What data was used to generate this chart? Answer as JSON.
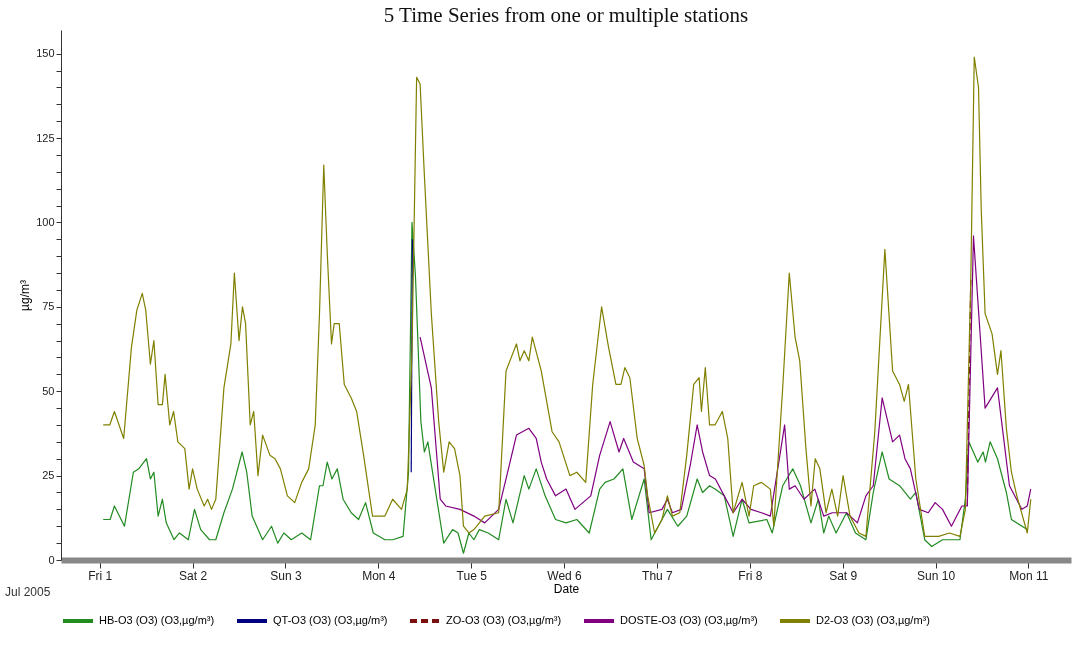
{
  "chart_data": {
    "type": "line",
    "title": "5 Time Series from  one or multiple stations",
    "xlabel": "Date",
    "ylabel": "µg/m³",
    "annotations": [
      "Jul 2005"
    ],
    "xlim": [
      "2005-06-30T14:00",
      "2005-07-11T11:00"
    ],
    "xticks": [
      {
        "value": "2005-07-01T00:00",
        "label": "Fri 1"
      },
      {
        "value": "2005-07-02T00:00",
        "label": "Sat 2"
      },
      {
        "value": "2005-07-03T00:00",
        "label": "Sun 3"
      },
      {
        "value": "2005-07-04T00:00",
        "label": "Mon 4"
      },
      {
        "value": "2005-07-05T00:00",
        "label": "Tue 5"
      },
      {
        "value": "2005-07-06T00:00",
        "label": "Wed 6"
      },
      {
        "value": "2005-07-07T00:00",
        "label": "Thu 7"
      },
      {
        "value": "2005-07-08T00:00",
        "label": "Fri 8"
      },
      {
        "value": "2005-07-09T00:00",
        "label": "Sat 9"
      },
      {
        "value": "2005-07-10T00:00",
        "label": "Sun 10"
      },
      {
        "value": "2005-07-11T00:00",
        "label": "Mon 11"
      }
    ],
    "ylim": [
      0,
      157
    ],
    "yticks": [
      0,
      {
        "value": 5,
        "label": null
      },
      {
        "value": 10,
        "label": null
      },
      {
        "value": 15,
        "label": null
      },
      {
        "value": 20,
        "label": null
      },
      25,
      {
        "value": 30,
        "label": null
      },
      {
        "value": 35,
        "label": null
      },
      {
        "value": 40,
        "label": null
      },
      {
        "value": 45,
        "label": null
      },
      50,
      {
        "value": 55,
        "label": null
      },
      {
        "value": 60,
        "label": null
      },
      {
        "value": 65,
        "label": null
      },
      {
        "value": 70,
        "label": null
      },
      75,
      {
        "value": 80,
        "label": null
      },
      {
        "value": 85,
        "label": null
      },
      {
        "value": 90,
        "label": null
      },
      {
        "value": 95,
        "label": null
      },
      100,
      {
        "value": 105,
        "label": null
      },
      {
        "value": 110,
        "label": null
      },
      {
        "value": 115,
        "label": null
      },
      {
        "value": 120,
        "label": null
      },
      125,
      {
        "value": 130,
        "label": null
      },
      {
        "value": 135,
        "label": null
      },
      {
        "value": 140,
        "label": null
      },
      {
        "value": 145,
        "label": null
      },
      150
    ],
    "grid": false,
    "legend": "bottom",
    "marker": "none",
    "series": [
      {
        "name": "HB-O3 (O3) (O3,µg/m³)",
        "color": "#228b22",
        "line_style": "solid",
        "x": [
          "2005-07-01T00:54",
          "2005-07-01T02:42",
          "2005-07-01T03:48",
          "2005-07-01T06:24",
          "2005-07-01T08:42",
          "2005-07-01T10:06",
          "2005-07-01T12:06",
          "2005-07-01T13:06",
          "2005-07-01T14:00",
          "2005-07-01T15:06",
          "2005-07-01T16:12",
          "2005-07-01T17:12",
          "2005-07-01T19:12",
          "2005-07-01T20:36",
          "2005-07-01T22:54",
          "2005-07-02T00:30",
          "2005-07-02T02:06",
          "2005-07-02T04:24",
          "2005-07-02T06:00",
          "2005-07-02T08:06",
          "2005-07-02T10:18",
          "2005-07-02T12:48",
          "2005-07-02T14:00",
          "2005-07-02T15:24",
          "2005-07-02T18:06",
          "2005-07-02T20:24",
          "2005-07-02T22:00",
          "2005-07-02T23:36",
          "2005-07-03T01:30",
          "2005-07-03T04:12",
          "2005-07-03T06:30",
          "2005-07-03T08:48",
          "2005-07-03T09:42",
          "2005-07-03T10:48",
          "2005-07-03T12:00",
          "2005-07-03T13:24",
          "2005-07-03T14:54",
          "2005-07-03T17:00",
          "2005-07-03T18:54",
          "2005-07-03T20:42",
          "2005-07-03T22:42",
          "2005-07-04T01:42",
          "2005-07-04T03:42",
          "2005-07-04T06:24",
          "2005-07-04T07:48",
          "2005-07-04T08:42",
          "2005-07-04T09:36",
          "2005-07-04T11:00",
          "2005-07-04T11:54",
          "2005-07-04T12:48",
          "2005-07-04T14:42",
          "2005-07-04T16:54",
          "2005-07-04T19:12",
          "2005-07-04T20:36",
          "2005-07-04T22:00",
          "2005-07-04T23:24",
          "2005-07-05T00:42",
          "2005-07-05T02:06",
          "2005-07-05T04:24",
          "2005-07-05T07:06",
          "2005-07-05T09:00",
          "2005-07-05T10:48",
          "2005-07-05T13:42",
          "2005-07-05T14:54",
          "2005-07-05T16:48",
          "2005-07-05T19:06",
          "2005-07-05T21:48",
          "2005-07-06T00:30",
          "2005-07-06T03:18",
          "2005-07-06T06:30",
          "2005-07-06T09:12",
          "2005-07-06T10:36",
          "2005-07-06T12:54",
          "2005-07-06T15:12",
          "2005-07-06T17:30",
          "2005-07-06T20:42",
          "2005-07-06T22:30",
          "2005-07-07T01:18",
          "2005-07-07T02:42",
          "2005-07-07T05:24",
          "2005-07-07T07:42",
          "2005-07-07T10:24",
          "2005-07-07T11:48",
          "2005-07-07T13:36",
          "2005-07-07T15:00",
          "2005-07-07T17:24",
          "2005-07-07T19:42",
          "2005-07-07T22:00",
          "2005-07-07T23:48",
          "2005-07-08T04:24",
          "2005-07-08T05:48",
          "2005-07-08T08:30",
          "2005-07-08T11:06",
          "2005-07-08T13:06",
          "2005-07-08T15:48",
          "2005-07-08T17:42",
          "2005-07-08T19:06",
          "2005-07-08T20:24",
          "2005-07-08T22:18",
          "2005-07-09T01:00",
          "2005-07-09T03:18",
          "2005-07-09T06:00",
          "2005-07-09T07:54",
          "2005-07-09T10:12",
          "2005-07-09T12:00",
          "2005-07-09T14:42",
          "2005-07-09T17:30",
          "2005-07-09T18:54",
          "2005-07-09T21:12",
          "2005-07-09T23:00",
          "2005-07-10T01:48",
          "2005-07-10T06:18",
          "2005-07-10T07:42",
          "2005-07-10T08:36",
          "2005-07-10T10:54",
          "2005-07-10T12:18",
          "2005-07-10T12:54",
          "2005-07-10T14:06",
          "2005-07-10T16:00",
          "2005-07-10T18:18",
          "2005-07-10T19:36",
          "2005-07-10T23:42"
        ],
        "values": [
          12,
          12,
          16,
          10,
          26,
          27,
          30,
          24,
          26,
          13,
          18,
          11,
          6,
          8,
          6,
          15,
          9,
          6,
          6,
          14,
          21,
          32,
          26,
          13,
          6,
          10,
          5,
          8,
          6,
          8,
          6,
          22,
          22,
          29,
          24,
          27,
          18,
          14,
          12,
          17,
          8,
          6,
          6,
          7,
          26,
          100,
          84,
          41,
          32,
          35,
          21,
          5,
          9,
          8,
          2,
          8,
          6,
          9,
          8,
          6,
          18,
          11,
          25,
          21,
          27,
          19,
          12,
          11,
          12,
          8,
          21,
          23,
          24,
          27,
          12,
          24,
          6,
          12,
          15,
          10,
          13,
          24,
          20,
          22,
          21,
          19,
          7,
          18,
          11,
          12,
          8,
          22,
          27,
          22,
          11,
          18,
          8,
          13,
          8,
          14,
          8,
          6,
          20,
          32,
          24,
          22,
          18,
          20,
          6,
          4,
          6,
          6,
          18,
          35,
          29,
          32,
          29,
          35,
          30,
          20,
          12,
          9
        ]
      },
      {
        "name": "QT-O3 (O3) (O3,µg/m³)",
        "color": "#000080",
        "line_style": "solid",
        "x": [
          "2005-07-04T08:30",
          "2005-07-04T08:48"
        ],
        "values": [
          26,
          95
        ]
      },
      {
        "name": "ZO-O3 (O3) (O3,µg/m³)",
        "color": "#7b1010",
        "line_style": "dashed",
        "x": [
          "2005-07-10T08:12",
          "2005-07-10T09:06"
        ],
        "values": [
          16,
          83
        ]
      },
      {
        "name": "DOSTE-O3 (O3) (O3,µg/m³)",
        "color": "#800080",
        "line_style": "solid",
        "x": [
          "2005-07-04T10:48",
          "2005-07-04T13:42",
          "2005-07-04T16:00",
          "2005-07-04T17:24",
          "2005-07-04T21:06",
          "2005-07-05T00:42",
          "2005-07-05T03:30",
          "2005-07-05T07:06",
          "2005-07-05T09:00",
          "2005-07-05T11:42",
          "2005-07-05T14:54",
          "2005-07-05T16:48",
          "2005-07-05T18:06",
          "2005-07-05T19:30",
          "2005-07-05T21:48",
          "2005-07-06T00:30",
          "2005-07-06T02:48",
          "2005-07-06T06:54",
          "2005-07-06T09:12",
          "2005-07-06T11:54",
          "2005-07-06T14:12",
          "2005-07-06T15:24",
          "2005-07-06T17:54",
          "2005-07-06T20:42",
          "2005-07-06T22:00",
          "2005-07-07T01:18",
          "2005-07-07T02:42",
          "2005-07-07T04:00",
          "2005-07-07T06:18",
          "2005-07-07T08:36",
          "2005-07-07T10:24",
          "2005-07-07T11:48",
          "2005-07-07T13:36",
          "2005-07-07T15:06",
          "2005-07-07T17:24",
          "2005-07-07T19:42",
          "2005-07-07T22:00",
          "2005-07-08T00:18",
          "2005-07-08T03:00",
          "2005-07-08T05:18",
          "2005-07-08T09:00",
          "2005-07-08T10:12",
          "2005-07-08T11:42",
          "2005-07-08T14:00",
          "2005-07-08T16:48",
          "2005-07-08T19:06",
          "2005-07-08T21:18",
          "2005-07-09T01:00",
          "2005-07-09T03:48",
          "2005-07-09T06:00",
          "2005-07-09T07:54",
          "2005-07-09T10:12",
          "2005-07-09T12:54",
          "2005-07-09T14:42",
          "2005-07-09T16:06",
          "2005-07-09T17:30",
          "2005-07-09T19:48",
          "2005-07-09T22:06",
          "2005-07-09T23:54",
          "2005-07-10T01:48",
          "2005-07-10T04:06",
          "2005-07-10T06:48",
          "2005-07-10T08:12",
          "2005-07-10T09:48",
          "2005-07-10T11:48",
          "2005-07-10T12:48",
          "2005-07-10T16:00",
          "2005-07-10T19:06",
          "2005-07-10T22:18",
          "2005-07-10T23:42",
          "2005-07-11T00:36"
        ],
        "values": [
          66,
          51,
          18,
          16,
          15,
          13,
          11,
          15,
          24,
          37,
          39,
          36,
          29,
          24,
          19,
          21,
          15,
          19,
          31,
          41,
          32,
          36,
          29,
          27,
          14,
          15,
          18,
          14,
          15,
          28,
          40,
          32,
          25,
          24,
          19,
          14,
          18,
          15,
          14,
          13,
          40,
          21,
          22,
          18,
          21,
          13,
          14,
          14,
          11,
          19,
          22,
          48,
          35,
          37,
          30,
          27,
          15,
          14,
          17,
          15,
          10,
          16,
          16,
          96,
          62,
          45,
          51,
          22,
          15,
          16,
          21
        ]
      },
      {
        "name": "D2-O3 (O3) (O3,µg/m³)",
        "color": "#808000",
        "line_style": "solid",
        "x": [
          "2005-07-01T00:54",
          "2005-07-01T02:36",
          "2005-07-01T03:48",
          "2005-07-01T06:12",
          "2005-07-01T08:12",
          "2005-07-01T09:36",
          "2005-07-01T11:00",
          "2005-07-01T11:54",
          "2005-07-01T13:06",
          "2005-07-01T14:00",
          "2005-07-01T15:06",
          "2005-07-01T16:12",
          "2005-07-01T16:54",
          "2005-07-01T18:06",
          "2005-07-01T19:06",
          "2005-07-01T20:12",
          "2005-07-01T22:00",
          "2005-07-01T23:06",
          "2005-07-02T00:00",
          "2005-07-02T01:12",
          "2005-07-02T03:00",
          "2005-07-02T03:54",
          "2005-07-02T04:54",
          "2005-07-02T06:00",
          "2005-07-02T08:06",
          "2005-07-02T09:54",
          "2005-07-02T10:48",
          "2005-07-02T12:00",
          "2005-07-02T12:54",
          "2005-07-02T13:42",
          "2005-07-02T14:54",
          "2005-07-02T15:48",
          "2005-07-02T16:54",
          "2005-07-02T18:06",
          "2005-07-02T20:00",
          "2005-07-02T21:18",
          "2005-07-02T22:42",
          "2005-07-03T00:30",
          "2005-07-03T02:24",
          "2005-07-03T04:12",
          "2005-07-03T06:00",
          "2005-07-03T07:42",
          "2005-07-03T08:48",
          "2005-07-03T09:54",
          "2005-07-03T10:48",
          "2005-07-03T11:54",
          "2005-07-03T12:36",
          "2005-07-03T13:54",
          "2005-07-03T15:12",
          "2005-07-03T17:00",
          "2005-07-03T18:24",
          "2005-07-03T20:12",
          "2005-07-03T22:30",
          "2005-07-04T01:42",
          "2005-07-04T03:42",
          "2005-07-04T06:00",
          "2005-07-04T07:30",
          "2005-07-04T08:42",
          "2005-07-04T09:54",
          "2005-07-04T10:48",
          "2005-07-04T11:54",
          "2005-07-04T13:42",
          "2005-07-04T15:36",
          "2005-07-04T16:54",
          "2005-07-04T18:18",
          "2005-07-04T19:42",
          "2005-07-04T21:06",
          "2005-07-04T22:00",
          "2005-07-04T23:24",
          "2005-07-05T00:42",
          "2005-07-05T02:06",
          "2005-07-05T03:30",
          "2005-07-05T07:06",
          "2005-07-05T09:00",
          "2005-07-05T11:42",
          "2005-07-05T12:36",
          "2005-07-05T13:42",
          "2005-07-05T14:54",
          "2005-07-05T15:48",
          "2005-07-05T18:06",
          "2005-07-05T20:54",
          "2005-07-05T22:42",
          "2005-07-06T01:30",
          "2005-07-06T03:18",
          "2005-07-06T05:36",
          "2005-07-06T07:24",
          "2005-07-06T09:42",
          "2005-07-06T11:30",
          "2005-07-06T13:24",
          "2005-07-06T14:42",
          "2005-07-06T15:42",
          "2005-07-06T17:00",
          "2005-07-06T18:54",
          "2005-07-06T20:42",
          "2005-07-06T21:36",
          "2005-07-06T23:24",
          "2005-07-07T01:18",
          "2005-07-07T02:42",
          "2005-07-07T04:00",
          "2005-07-07T05:54",
          "2005-07-07T07:42",
          "2005-07-07T09:30",
          "2005-07-07T10:54",
          "2005-07-07T11:30",
          "2005-07-07T12:30",
          "2005-07-07T13:36",
          "2005-07-07T15:00",
          "2005-07-07T16:54",
          "2005-07-07T18:18",
          "2005-07-07T19:42",
          "2005-07-07T22:00",
          "2005-07-07T23:48",
          "2005-07-08T01:00",
          "2005-07-08T03:00",
          "2005-07-08T05:18",
          "2005-07-08T06:12",
          "2005-07-08T08:30",
          "2005-07-08T10:12",
          "2005-07-08T11:42",
          "2005-07-08T12:54",
          "2005-07-08T14:30",
          "2005-07-08T15:48",
          "2005-07-08T16:54",
          "2005-07-08T18:06",
          "2005-07-08T19:42",
          "2005-07-08T21:12",
          "2005-07-08T22:42",
          "2005-07-09T00:06",
          "2005-07-09T01:54",
          "2005-07-09T04:12",
          "2005-07-09T06:00",
          "2005-07-09T08:18",
          "2005-07-09T10:54",
          "2005-07-09T12:54",
          "2005-07-09T14:42",
          "2005-07-09T15:54",
          "2005-07-09T17:00",
          "2005-07-09T18:54",
          "2005-07-09T21:12",
          "2005-07-10T00:48",
          "2005-07-10T03:36",
          "2005-07-10T06:18",
          "2005-07-10T07:42",
          "2005-07-10T09:06",
          "2005-07-10T10:00",
          "2005-07-10T11:06",
          "2005-07-10T11:48",
          "2005-07-10T12:48",
          "2005-07-10T14:36",
          "2005-07-10T16:00",
          "2005-07-10T16:54",
          "2005-07-10T18:18",
          "2005-07-10T19:36",
          "2005-07-10T21:00",
          "2005-07-10T23:42",
          "2005-07-11T00:36"
        ],
        "values": [
          40,
          40,
          44,
          36,
          63,
          74,
          79,
          74,
          58,
          65,
          46,
          46,
          55,
          40,
          44,
          35,
          33,
          21,
          27,
          21,
          16,
          18,
          15,
          18,
          51,
          64,
          85,
          65,
          75,
          70,
          40,
          44,
          25,
          37,
          31,
          30,
          27,
          19,
          17,
          23,
          27,
          40,
          73,
          117,
          91,
          64,
          70,
          70,
          52,
          48,
          44,
          31,
          13,
          13,
          18,
          15,
          21,
          62,
          143,
          141,
          114,
          73,
          41,
          26,
          35,
          33,
          25,
          10,
          8,
          9,
          11,
          13,
          14,
          56,
          64,
          59,
          62,
          59,
          66,
          56,
          38,
          35,
          25,
          26,
          23,
          52,
          75,
          63,
          52,
          52,
          57,
          54,
          36,
          28,
          19,
          8,
          12,
          19,
          13,
          14,
          31,
          52,
          54,
          44,
          57,
          40,
          40,
          44,
          36,
          14,
          23,
          13,
          22,
          23,
          21,
          10,
          51,
          85,
          66,
          59,
          33,
          16,
          30,
          27,
          14,
          21,
          13,
          25,
          13,
          8,
          7,
          38,
          92,
          56,
          52,
          47,
          52,
          24,
          7,
          7,
          8,
          7,
          15,
          83,
          149,
          140,
          104,
          73,
          67,
          55,
          62,
          39,
          26,
          19,
          8,
          18
        ]
      }
    ]
  }
}
